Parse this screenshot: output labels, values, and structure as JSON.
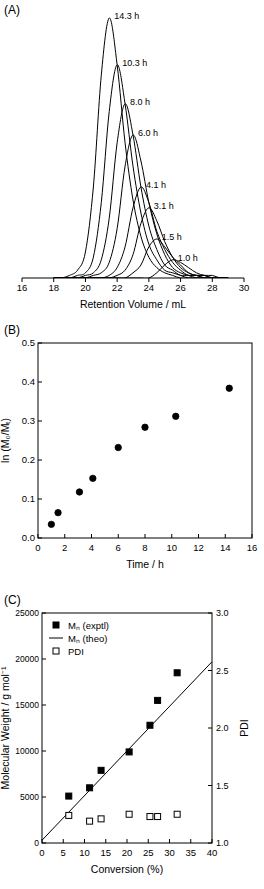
{
  "chart_data": [
    {
      "type": "line",
      "title": "(A)",
      "x_label": "Retention Volume / mL",
      "x": [
        18,
        18.5,
        19,
        19.5,
        20,
        20.5,
        21,
        21.5,
        22,
        22.5,
        23,
        23.5,
        24,
        24.5,
        25,
        25.5,
        26,
        26.5,
        27,
        27.5,
        28,
        28.5,
        29
      ],
      "xlim": [
        16,
        30
      ],
      "xticks": [
        16,
        18,
        20,
        22,
        24,
        26,
        28,
        30
      ],
      "ylim": [
        0,
        1.05
      ],
      "tick_labels": "x",
      "series": [
        {
          "name": "14.3 h",
          "color": "#000000",
          "values": [
            0,
            0,
            0.01,
            0.03,
            0.1,
            0.35,
            0.78,
            1,
            0.82,
            0.52,
            0.3,
            0.16,
            0.08,
            0.04,
            0.02,
            0.01,
            0,
            0,
            0,
            0,
            0,
            0,
            0
          ]
        },
        {
          "name": "10.3 h",
          "color": "#000000",
          "values": [
            0,
            0,
            0,
            0.01,
            0.02,
            0.08,
            0.29,
            0.64,
            0.82,
            0.67,
            0.43,
            0.25,
            0.13,
            0.07,
            0.03,
            0.02,
            0.01,
            0,
            0,
            0,
            0,
            0,
            0
          ]
        },
        {
          "name": "8.0 h",
          "color": "#000000",
          "values": [
            0,
            0,
            0,
            0,
            0.01,
            0.02,
            0.07,
            0.23,
            0.52,
            0.67,
            0.55,
            0.35,
            0.2,
            0.11,
            0.05,
            0.03,
            0.01,
            0.01,
            0,
            0,
            0,
            0,
            0
          ]
        },
        {
          "name": "6.0 h",
          "color": "#000000",
          "values": [
            0,
            0,
            0,
            0,
            0,
            0.01,
            0.02,
            0.06,
            0.19,
            0.43,
            0.55,
            0.45,
            0.29,
            0.17,
            0.09,
            0.04,
            0.02,
            0.01,
            0.01,
            0,
            0,
            0,
            0
          ]
        },
        {
          "name": "4.1 h",
          "color": "#000000",
          "values": [
            0,
            0,
            0,
            0,
            0,
            0,
            0,
            0.01,
            0.04,
            0.12,
            0.27,
            0.35,
            0.29,
            0.18,
            0.11,
            0.06,
            0.03,
            0.01,
            0.01,
            0,
            0,
            0,
            0
          ]
        },
        {
          "name": "3.1 h",
          "color": "#000000",
          "values": [
            0,
            0,
            0,
            0,
            0,
            0,
            0,
            0,
            0.01,
            0.03,
            0.09,
            0.21,
            0.27,
            0.22,
            0.14,
            0.08,
            0.04,
            0.02,
            0.01,
            0.01,
            0,
            0,
            0
          ]
        },
        {
          "name": "1.5 h",
          "color": "#000000",
          "values": [
            0,
            0,
            0,
            0,
            0,
            0,
            0,
            0,
            0,
            0,
            0.02,
            0.05,
            0.12,
            0.15,
            0.12,
            0.08,
            0.05,
            0.02,
            0.01,
            0.01,
            0,
            0,
            0
          ]
        },
        {
          "name": "1.0 h",
          "color": "#000000",
          "values": [
            0,
            0,
            0,
            0,
            0,
            0,
            0,
            0,
            0,
            0,
            0,
            0,
            0,
            0.02,
            0.05,
            0.07,
            0.06,
            0.04,
            0.02,
            0.01,
            0.01,
            0,
            0
          ]
        }
      ]
    },
    {
      "type": "scatter",
      "title": "(B)",
      "x_label": "Time / h",
      "y_label": "ln (M₀/Mₜ)",
      "x": [
        1.0,
        1.5,
        3.1,
        4.1,
        6.0,
        8.0,
        10.3,
        14.3
      ],
      "values": [
        0.035,
        0.065,
        0.118,
        0.153,
        0.232,
        0.284,
        0.312,
        0.384
      ],
      "color": "#000000",
      "marker": "circle",
      "xlim": [
        0,
        16
      ],
      "xticks": [
        0,
        2,
        4,
        6,
        8,
        10,
        12,
        14,
        16
      ],
      "ylim": [
        0,
        0.5
      ],
      "yticks": [
        {
          "value": 0,
          "label": "0.0"
        },
        {
          "value": 0.1,
          "label": "0.1"
        },
        {
          "value": 0.2,
          "label": "0.2"
        },
        {
          "value": 0.3,
          "label": "0.3"
        },
        {
          "value": 0.4,
          "label": "0.4"
        },
        {
          "value": 0.5,
          "label": "0.5"
        }
      ]
    },
    {
      "type": "scatter",
      "title": "(C)",
      "x_label": "Conversion (%)",
      "y_label": "Molecular Weight / g mol⁻¹",
      "y2_label": "PDI",
      "xlim": [
        0,
        40
      ],
      "xticks": [
        0,
        5,
        10,
        15,
        20,
        25,
        30,
        35,
        40
      ],
      "ylim": [
        0,
        25000
      ],
      "yticks": [
        0,
        5000,
        10000,
        15000,
        20000,
        25000
      ],
      "y2lim": [
        1,
        3
      ],
      "y2ticks": [
        {
          "value": 1,
          "label": "1.0"
        },
        {
          "value": 1.5,
          "label": "1.5"
        },
        {
          "value": 2,
          "label": "2.0"
        },
        {
          "value": 2.5,
          "label": "2.5"
        },
        {
          "value": 3,
          "label": "3.0"
        }
      ],
      "legend": "top-left",
      "series": [
        {
          "name": "Mₙ (exptl)",
          "type": "scatter",
          "marker": "square",
          "color": "#000000",
          "x": [
            6.3,
            11.2,
            13.9,
            20.5,
            25.4,
            27.2,
            31.8
          ],
          "values": [
            5100,
            6000,
            7900,
            9900,
            12800,
            15500,
            18500
          ]
        },
        {
          "name": "Mₙ (theo)",
          "type": "line",
          "line_style": "solid",
          "color": "#000000",
          "x": [
            0,
            40
          ],
          "values": [
            300,
            19700
          ]
        },
        {
          "name": "PDI",
          "type": "scatter",
          "marker": "open-square",
          "color": "#000000",
          "axis": "y2",
          "x": [
            6.3,
            11.2,
            13.9,
            20.5,
            25.4,
            27.2,
            31.8
          ],
          "values": [
            1.24,
            1.19,
            1.21,
            1.25,
            1.23,
            1.23,
            1.25
          ]
        }
      ]
    }
  ]
}
